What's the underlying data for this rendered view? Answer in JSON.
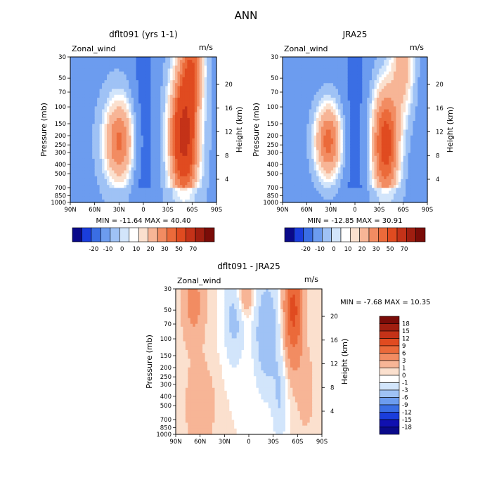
{
  "figure": {
    "title": "ANN",
    "colors": {
      "c_neg20": "#0a0a8a",
      "c_neg10": "#1a3ddc",
      "c_neg5": "#3a6ee4",
      "c_neg2": "#6c9cef",
      "c_0": "#9fc2f5",
      "c_2": "#d2e5fb",
      "c_5": "#fbe0ce",
      "c_10": "#f7b596",
      "c_20": "#f28c62",
      "c_30": "#eb6a3a",
      "c_40": "#e04b20",
      "c_50": "#c43218",
      "c_60": "#a01e10",
      "c_70": "#7a0c08"
    }
  },
  "chart_data": [
    {
      "type": "heatmap",
      "title": "dflt091 (yrs 1-1)",
      "variable_label": "Zonal_wind",
      "units_label": "m/s",
      "ylabel": "Pressure (mb)",
      "y2label": "Height (km)",
      "x_ticks": [
        "90N",
        "60N",
        "30N",
        "0",
        "30S",
        "60S",
        "90S"
      ],
      "y_ticks": [
        "30",
        "50",
        "70",
        "100",
        "150",
        "200",
        "250",
        "300",
        "400",
        "500",
        "700",
        "850",
        "1000"
      ],
      "y2_ticks": [
        "4",
        "8",
        "12",
        "16",
        "20"
      ],
      "min_max_text": "MIN = -11.64   MAX = 40.40",
      "min": -11.64,
      "max": 40.4,
      "jets": [
        {
          "lat": 30,
          "pressure": 200,
          "speed": 22,
          "hemisphere": "N"
        },
        {
          "lat": -50,
          "pressure": 200,
          "speed": 40.4,
          "hemisphere": "S"
        }
      ]
    },
    {
      "type": "heatmap",
      "title": "JRA25",
      "variable_label": "Zonal_wind",
      "units_label": "m/s",
      "ylabel": "Pressure (mb)",
      "y2label": "Height (km)",
      "x_ticks": [
        "90N",
        "60N",
        "30N",
        "0",
        "30S",
        "60S",
        "90S"
      ],
      "y_ticks": [
        "30",
        "50",
        "70",
        "100",
        "150",
        "200",
        "250",
        "300",
        "400",
        "500",
        "700",
        "850",
        "1000"
      ],
      "y2_ticks": [
        "4",
        "8",
        "12",
        "16",
        "20"
      ],
      "min_max_text": "MIN = -12.85   MAX = 30.91",
      "min": -12.85,
      "max": 30.91,
      "jets": [
        {
          "lat": 33,
          "pressure": 200,
          "speed": 24,
          "hemisphere": "N"
        },
        {
          "lat": -35,
          "pressure": 200,
          "speed": 30.9,
          "hemisphere": "S"
        }
      ]
    },
    {
      "type": "heatmap",
      "title": "dflt091 - JRA25",
      "variable_label": "Zonal_wind",
      "units_label": "m/s",
      "ylabel": "Pressure (mb)",
      "y2label": "Height (km)",
      "x_ticks": [
        "90N",
        "60N",
        "30N",
        "0",
        "30S",
        "60S",
        "90S"
      ],
      "y_ticks": [
        "30",
        "50",
        "70",
        "100",
        "150",
        "200",
        "250",
        "300",
        "400",
        "500",
        "700",
        "850",
        "1000"
      ],
      "y2_ticks": [
        "4",
        "8",
        "12",
        "16",
        "20"
      ],
      "min_max_text": "MIN =   -7.68   MAX =  10.35",
      "min": -7.68,
      "max": 10.35
    }
  ],
  "colorbars": {
    "abs": {
      "labels": [
        "-20",
        "-10",
        "0",
        "10",
        "20",
        "30",
        "50",
        "70"
      ],
      "colors": [
        "#0a0a8a",
        "#1a3ddc",
        "#3a6ee4",
        "#6c9cef",
        "#9fc2f5",
        "#d2e5fb",
        "#ffffff",
        "#fbe0ce",
        "#f7b596",
        "#f28c62",
        "#eb6a3a",
        "#e04b20",
        "#c43218",
        "#a01e10",
        "#7a0c08"
      ]
    },
    "diff": {
      "labels": [
        "18",
        "15",
        "12",
        "9",
        "6",
        "3",
        "1",
        "0",
        "-1",
        "-3",
        "-6",
        "-9",
        "-12",
        "-15",
        "-18"
      ],
      "colors": [
        "#7a0c08",
        "#a01e10",
        "#c43218",
        "#e04b20",
        "#eb6a3a",
        "#f28c62",
        "#f7b596",
        "#fbe0ce",
        "#ffffff",
        "#d2e5fb",
        "#9fc2f5",
        "#6c9cef",
        "#3a6ee4",
        "#1a3ddc",
        "#1010b0",
        "#0a0a8a"
      ]
    }
  }
}
